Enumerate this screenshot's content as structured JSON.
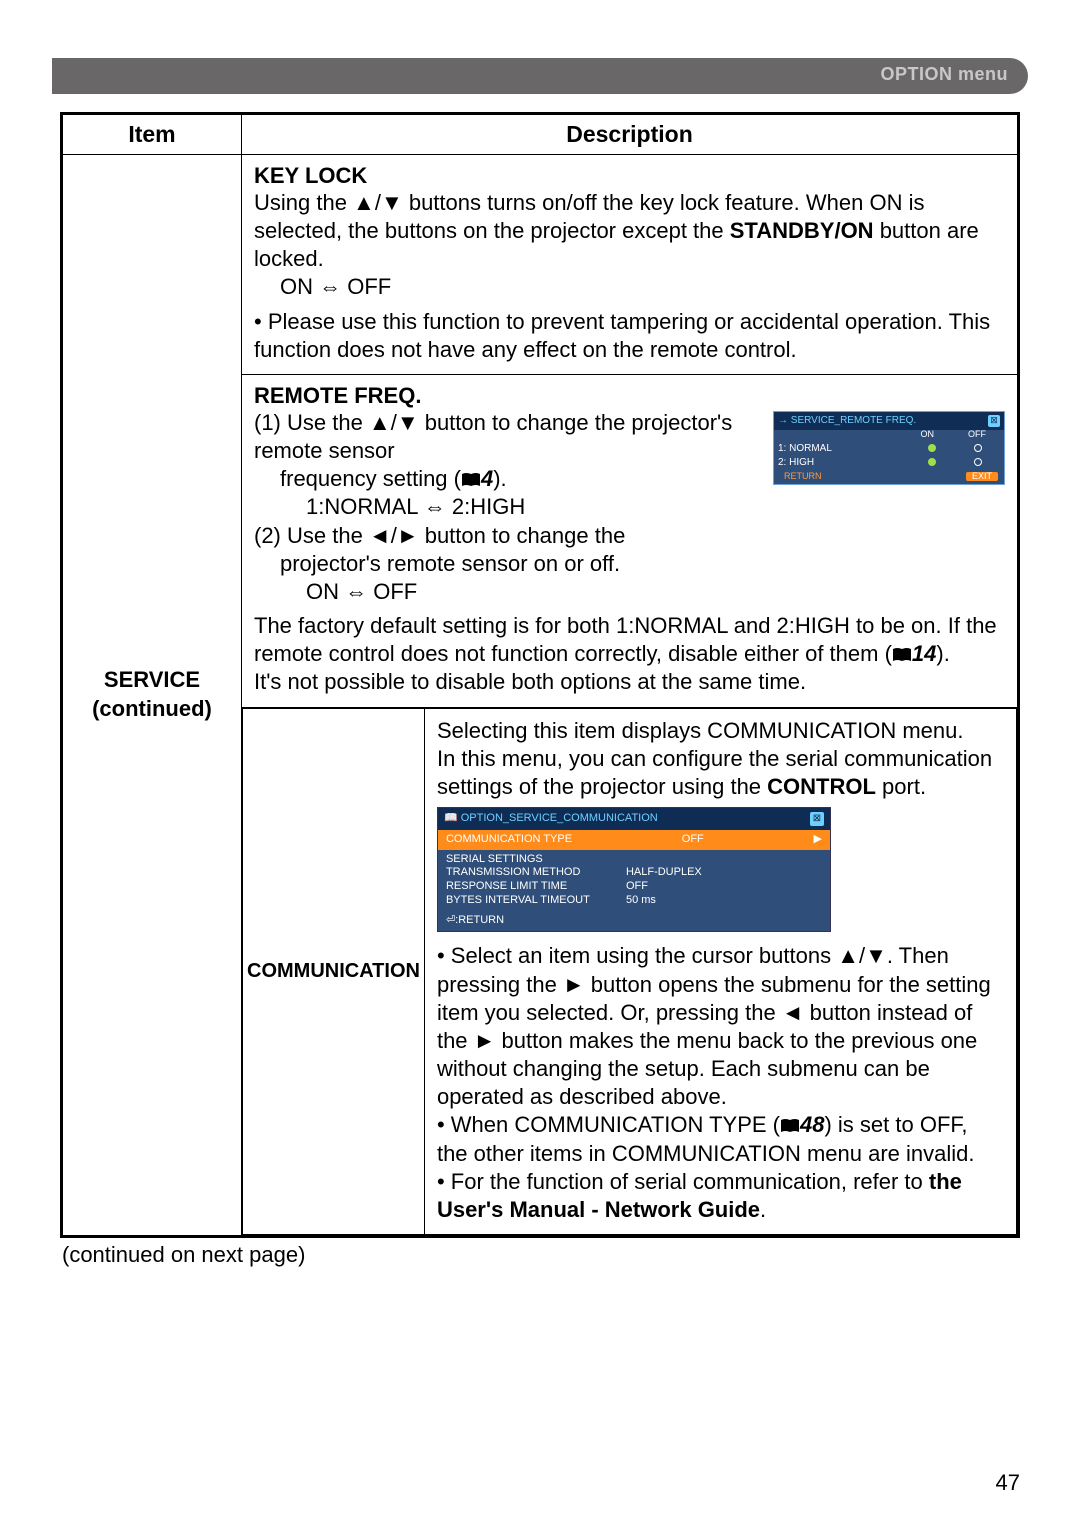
{
  "page": {
    "header_label": "OPTION menu",
    "continued_note": "(continued on next page)",
    "page_number": "47"
  },
  "table": {
    "headers": {
      "item": "Item",
      "description": "Description"
    },
    "row_label_line1": "SERVICE",
    "row_label_line2": "(continued)"
  },
  "keylock": {
    "title": "KEY LOCK",
    "p1a": "Using the ▲/▼ buttons turns on/off the key lock feature. When ON is selected, the buttons on the projector except the ",
    "p1_bold": "STANDBY/ON",
    "p1b": " button are locked.",
    "toggle": "ON ⇔ OFF",
    "p2": "• Please use this function to prevent tampering or accidental operation. This function does not have any effect on the remote control."
  },
  "remote": {
    "title": "REMOTE FREQ.",
    "l1": "(1) Use the ▲/▼ button to change the projector's remote sensor",
    "l1b_a": "frequency setting (",
    "l1b_ref": "4",
    "l1b_b": ").",
    "l1c": "1:NORMAL ⇔ 2:HIGH",
    "l2": "(2) Use the ◄/► button to change the",
    "l2b": "projector's remote sensor on or off.",
    "l2c": "ON ⇔ OFF",
    "p2a": "The factory default setting is for both 1:NORMAL and 2:HIGH to be on. If the remote control does not function correctly, disable either of them (",
    "p2_ref": "14",
    "p2b": ").",
    "p3": "It's not possible to disable both options at the same time.",
    "osd": {
      "title": "SERVICE_REMOTE FREQ.",
      "col_on": "ON",
      "col_off": "OFF",
      "row1": "1: NORMAL",
      "row2": "2: HIGH",
      "return": "RETURN",
      "exit": "EXIT"
    }
  },
  "comm": {
    "label": "COMMUNICATION",
    "intro_a": "Selecting this item displays COMMUNICATION menu.",
    "intro_b": "In this menu, you can configure the serial communication settings of the projector using the ",
    "intro_bold": "CONTROL",
    "intro_c": " port.",
    "osd": {
      "breadcrumb": "OPTION_SERVICE_COMMUNICATION",
      "sel_label": "COMMUNICATION TYPE",
      "sel_value": "OFF",
      "rows": [
        {
          "k": "SERIAL SETTINGS",
          "v": ""
        },
        {
          "k": "TRANSMISSION METHOD",
          "v": "HALF-DUPLEX"
        },
        {
          "k": "RESPONSE LIMIT TIME",
          "v": "OFF"
        },
        {
          "k": "BYTES INTERVAL TIMEOUT",
          "v": "50 ms"
        }
      ],
      "return": "⏎:RETURN"
    },
    "b1": "• Select an item using the cursor buttons ▲/▼. Then pressing the ► button opens the submenu for the setting item you selected. Or, pressing the ◄ button instead of the ► button makes the menu back to the previous one without changing the setup. Each submenu can be operated as described above.",
    "b2a": "• When COMMUNICATION TYPE (",
    "b2_ref": "48",
    "b2b": ") is set to OFF, the other items in COMMUNICATION menu are invalid.",
    "b3a": "• For the function of serial communication, refer to ",
    "b3_bold": "the User's Manual - Network Guide",
    "b3b": "."
  },
  "colors": {
    "band": "#6a6769",
    "band_text": "#c9c7c8",
    "osd_dark": "#0e2c54",
    "osd_blue": "#2f4f7a",
    "osd_cyan": "#6fd0ff",
    "osd_orange": "#ff8c1a"
  }
}
